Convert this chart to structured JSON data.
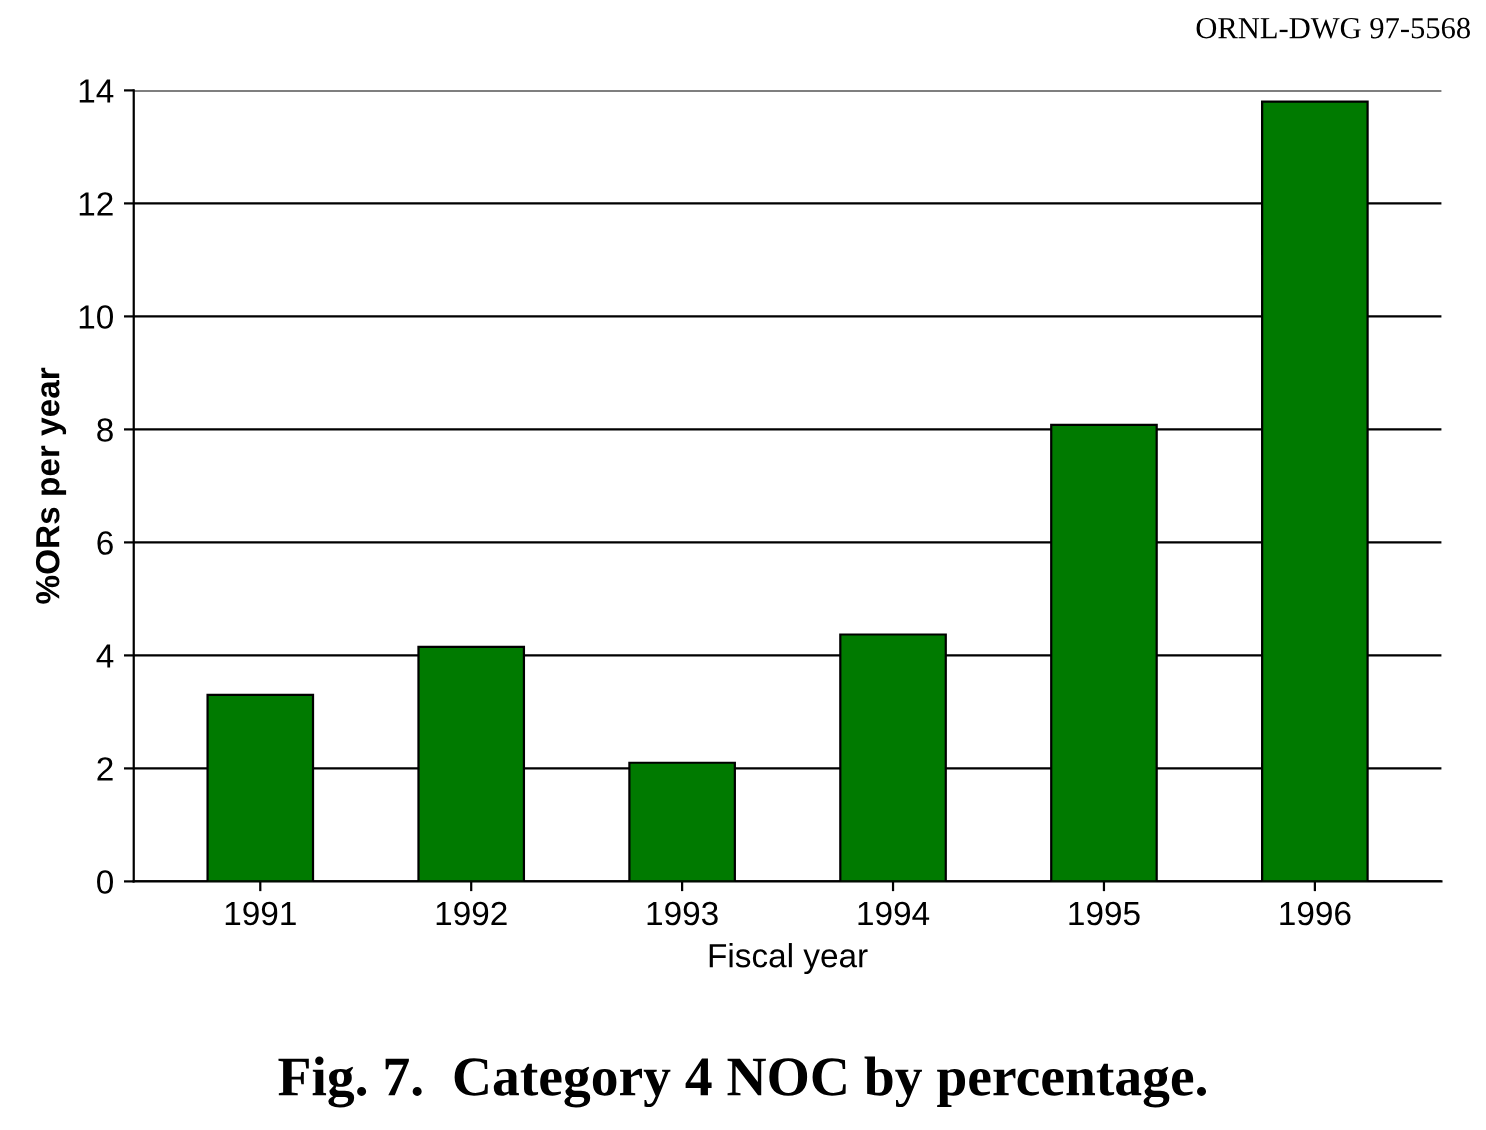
{
  "chart_data": {
    "type": "bar",
    "categories": [
      "1991",
      "1992",
      "1993",
      "1994",
      "1995",
      "1996"
    ],
    "values": [
      3.3,
      4.15,
      2.1,
      4.37,
      8.08,
      13.8
    ],
    "color": "#007a00",
    "xlabel": "Fiscal year",
    "ylabel": "%ORs per year",
    "ylim": [
      0,
      14
    ],
    "yticks": [
      0,
      2,
      4,
      6,
      8,
      10,
      12,
      14
    ],
    "grid": "y",
    "annotations": [
      "ORNL-DWG 97-5568",
      "Fig. 7.  Category 4 NOC by percentage."
    ]
  }
}
